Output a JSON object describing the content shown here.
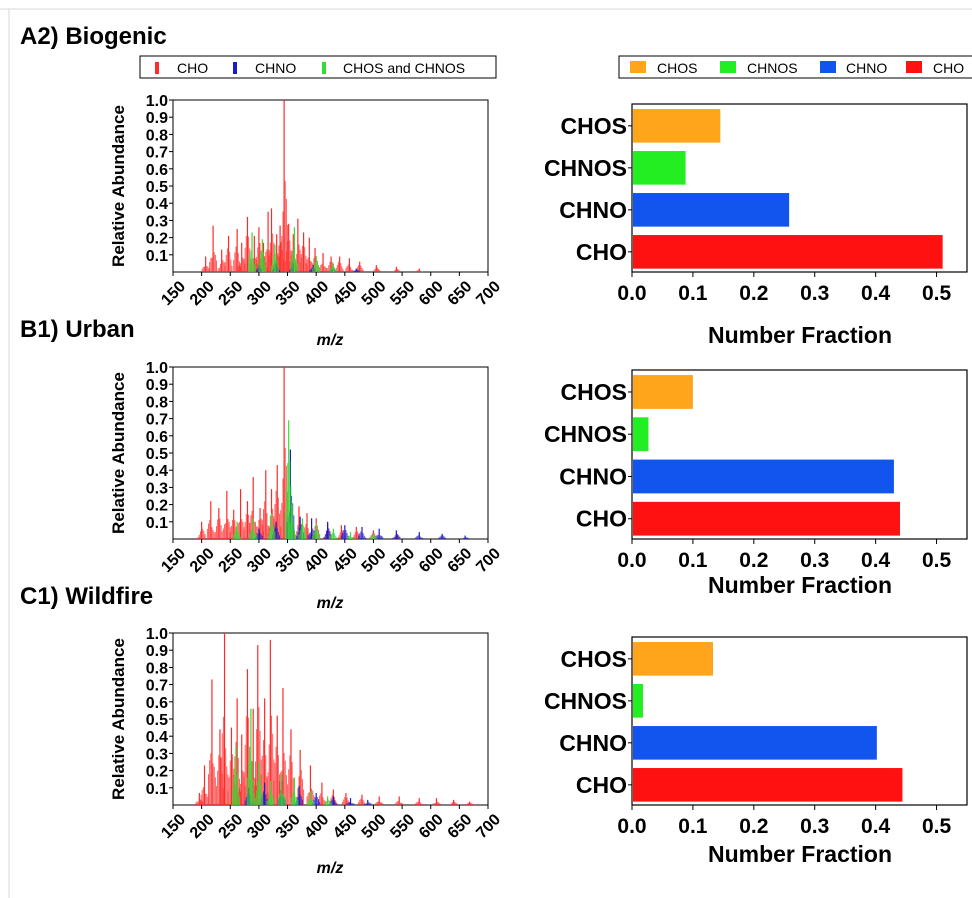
{
  "legend_spectra": [
    {
      "label": "CHO",
      "color": "#ff2a2a"
    },
    {
      "label": "CHNO",
      "color": "#1a1acc"
    },
    {
      "label": "CHOS and CHNOS",
      "color": "#33dd33"
    }
  ],
  "legend_bars": [
    {
      "label": "CHOS",
      "color": "#ffa51c"
    },
    {
      "label": "CHNOS",
      "color": "#22ee22"
    },
    {
      "label": "CHNO",
      "color": "#1155ee"
    },
    {
      "label": "CHO",
      "color": "#ff1111"
    }
  ],
  "chart_data": [
    {
      "panel": "A2) Biogenic",
      "type": "bar",
      "subtype": "mass-spectrum",
      "xlabel": "m/z",
      "ylabel": "Relative Abundance",
      "xlim": [
        150,
        700
      ],
      "ylim": [
        0,
        1.0
      ],
      "x_ticks": [
        "150",
        "200",
        "250",
        "300",
        "350",
        "400",
        "450",
        "500",
        "550",
        "600",
        "650",
        "700"
      ],
      "y_ticks": [
        "0.1",
        "0.2",
        "0.3",
        "0.4",
        "0.5",
        "0.6",
        "0.7",
        "0.8",
        "0.9",
        "1.0"
      ],
      "series": [
        {
          "name": "CHO",
          "points": [
            [
              207,
              0.09
            ],
            [
              220,
              0.27
            ],
            [
              235,
              0.13
            ],
            [
              247,
              0.21
            ],
            [
              262,
              0.25
            ],
            [
              270,
              0.17
            ],
            [
              280,
              0.32
            ],
            [
              292,
              0.21
            ],
            [
              300,
              0.26
            ],
            [
              308,
              0.17
            ],
            [
              316,
              0.35
            ],
            [
              322,
              0.37
            ],
            [
              331,
              0.22
            ],
            [
              337,
              0.27
            ],
            [
              344,
              1.0
            ],
            [
              352,
              0.28
            ],
            [
              360,
              0.22
            ],
            [
              368,
              0.31
            ],
            [
              378,
              0.23
            ],
            [
              388,
              0.2
            ],
            [
              398,
              0.14
            ],
            [
              412,
              0.11
            ],
            [
              426,
              0.09
            ],
            [
              441,
              0.09
            ],
            [
              458,
              0.08
            ],
            [
              476,
              0.06
            ],
            [
              505,
              0.04
            ],
            [
              540,
              0.03
            ],
            [
              580,
              0.02
            ]
          ]
        },
        {
          "name": "CHNO",
          "points": [
            [
              300,
              0.04
            ],
            [
              330,
              0.05
            ],
            [
              360,
              0.05
            ],
            [
              395,
              0.04
            ],
            [
              430,
              0.03
            ],
            [
              470,
              0.02
            ]
          ]
        },
        {
          "name": "CHOS and CHNOS",
          "points": [
            [
              288,
              0.23
            ],
            [
              306,
              0.19
            ],
            [
              328,
              0.16
            ],
            [
              362,
              0.26
            ],
            [
              400,
              0.09
            ],
            [
              430,
              0.05
            ]
          ]
        }
      ]
    },
    {
      "panel": "A2) Biogenic",
      "type": "bar",
      "orientation": "horizontal",
      "xlabel": "Number Fraction",
      "xlim": [
        0,
        0.55
      ],
      "x_ticks": [
        "0.0",
        "0.1",
        "0.2",
        "0.3",
        "0.4",
        "0.5"
      ],
      "categories": [
        "CHOS",
        "CHNOS",
        "CHNO",
        "CHO"
      ],
      "values": [
        0.145,
        0.088,
        0.258,
        0.51
      ]
    },
    {
      "panel": "B1) Urban",
      "type": "bar",
      "subtype": "mass-spectrum",
      "xlabel": "m/z",
      "ylabel": "Relative Abundance",
      "xlim": [
        150,
        700
      ],
      "ylim": [
        0,
        1.0
      ],
      "x_ticks": [
        "150",
        "200",
        "250",
        "300",
        "350",
        "400",
        "450",
        "500",
        "550",
        "600",
        "650",
        "700"
      ],
      "y_ticks": [
        "0.1",
        "0.2",
        "0.3",
        "0.4",
        "0.5",
        "0.6",
        "0.7",
        "0.8",
        "0.9",
        "1.0"
      ],
      "series": [
        {
          "name": "CHO",
          "points": [
            [
              200,
              0.1
            ],
            [
              216,
              0.22
            ],
            [
              230,
              0.18
            ],
            [
              244,
              0.28
            ],
            [
              256,
              0.17
            ],
            [
              268,
              0.29
            ],
            [
              280,
              0.22
            ],
            [
              290,
              0.36
            ],
            [
              302,
              0.18
            ],
            [
              312,
              0.4
            ],
            [
              322,
              0.29
            ],
            [
              332,
              0.43
            ],
            [
              344,
              1.0
            ],
            [
              356,
              0.25
            ],
            [
              370,
              0.19
            ],
            [
              384,
              0.15
            ],
            [
              400,
              0.12
            ],
            [
              420,
              0.09
            ],
            [
              444,
              0.08
            ],
            [
              470,
              0.07
            ],
            [
              500,
              0.05
            ],
            [
              540,
              0.03
            ]
          ]
        },
        {
          "name": "CHNO",
          "points": [
            [
              300,
              0.06
            ],
            [
              330,
              0.1
            ],
            [
              355,
              0.52
            ],
            [
              372,
              0.13
            ],
            [
              392,
              0.12
            ],
            [
              420,
              0.1
            ],
            [
              450,
              0.08
            ],
            [
              480,
              0.07
            ],
            [
              510,
              0.06
            ],
            [
              540,
              0.05
            ],
            [
              580,
              0.04
            ],
            [
              620,
              0.03
            ],
            [
              660,
              0.02
            ]
          ]
        },
        {
          "name": "CHOS and CHNOS",
          "points": [
            [
              262,
              0.1
            ],
            [
              290,
              0.12
            ],
            [
              322,
              0.15
            ],
            [
              352,
              0.69
            ],
            [
              358,
              0.2
            ],
            [
              376,
              0.12
            ],
            [
              400,
              0.09
            ],
            [
              430,
              0.06
            ],
            [
              460,
              0.04
            ],
            [
              500,
              0.03
            ]
          ]
        }
      ]
    },
    {
      "panel": "B1) Urban",
      "type": "bar",
      "orientation": "horizontal",
      "xlabel": "Number Fraction",
      "xlim": [
        0,
        0.55
      ],
      "x_ticks": [
        "0.0",
        "0.1",
        "0.2",
        "0.3",
        "0.4",
        "0.5"
      ],
      "categories": [
        "CHOS",
        "CHNOS",
        "CHNO",
        "CHO"
      ],
      "values": [
        0.1,
        0.027,
        0.43,
        0.44
      ]
    },
    {
      "panel": "C1) Wildfire",
      "type": "bar",
      "subtype": "mass-spectrum",
      "xlabel": "m/z",
      "ylabel": "Relative Abundance",
      "xlim": [
        150,
        700
      ],
      "ylim": [
        0,
        1.0
      ],
      "x_ticks": [
        "150",
        "200",
        "250",
        "300",
        "350",
        "400",
        "450",
        "500",
        "550",
        "600",
        "650",
        "700"
      ],
      "y_ticks": [
        "0.1",
        "0.2",
        "0.3",
        "0.4",
        "0.5",
        "0.6",
        "0.7",
        "0.8",
        "0.9",
        "1.0"
      ],
      "series": [
        {
          "name": "CHO",
          "points": [
            [
              196,
              0.07
            ],
            [
              205,
              0.23
            ],
            [
              218,
              0.73
            ],
            [
              232,
              0.44
            ],
            [
              240,
              1.0
            ],
            [
              252,
              0.45
            ],
            [
              262,
              0.62
            ],
            [
              270,
              0.41
            ],
            [
              280,
              0.79
            ],
            [
              290,
              0.56
            ],
            [
              298,
              0.93
            ],
            [
              310,
              0.62
            ],
            [
              320,
              0.96
            ],
            [
              332,
              0.52
            ],
            [
              342,
              0.68
            ],
            [
              356,
              0.44
            ],
            [
              372,
              0.32
            ],
            [
              390,
              0.23
            ],
            [
              410,
              0.13
            ],
            [
              430,
              0.09
            ],
            [
              452,
              0.07
            ],
            [
              480,
              0.06
            ],
            [
              510,
              0.05
            ],
            [
              545,
              0.05
            ],
            [
              580,
              0.04
            ],
            [
              610,
              0.04
            ],
            [
              640,
              0.03
            ],
            [
              668,
              0.02
            ]
          ]
        },
        {
          "name": "CHNO",
          "points": [
            [
              282,
              0.1
            ],
            [
              310,
              0.13
            ],
            [
              340,
              0.14
            ],
            [
              370,
              0.11
            ],
            [
              400,
              0.07
            ],
            [
              430,
              0.05
            ],
            [
              460,
              0.04
            ],
            [
              490,
              0.03
            ]
          ]
        },
        {
          "name": "CHOS and CHNOS",
          "points": [
            [
              260,
              0.34
            ],
            [
              286,
              0.56
            ],
            [
              300,
              0.25
            ],
            [
              320,
              0.14
            ],
            [
              340,
              0.18
            ],
            [
              362,
              0.16
            ],
            [
              390,
              0.08
            ],
            [
              420,
              0.05
            ]
          ]
        }
      ]
    },
    {
      "panel": "C1) Wildfire",
      "type": "bar",
      "orientation": "horizontal",
      "xlabel": "Number Fraction",
      "xlim": [
        0,
        0.55
      ],
      "x_ticks": [
        "0.0",
        "0.1",
        "0.2",
        "0.3",
        "0.4",
        "0.5"
      ],
      "categories": [
        "CHOS",
        "CHNOS",
        "CHNO",
        "CHO"
      ],
      "values": [
        0.133,
        0.018,
        0.402,
        0.444
      ]
    }
  ]
}
